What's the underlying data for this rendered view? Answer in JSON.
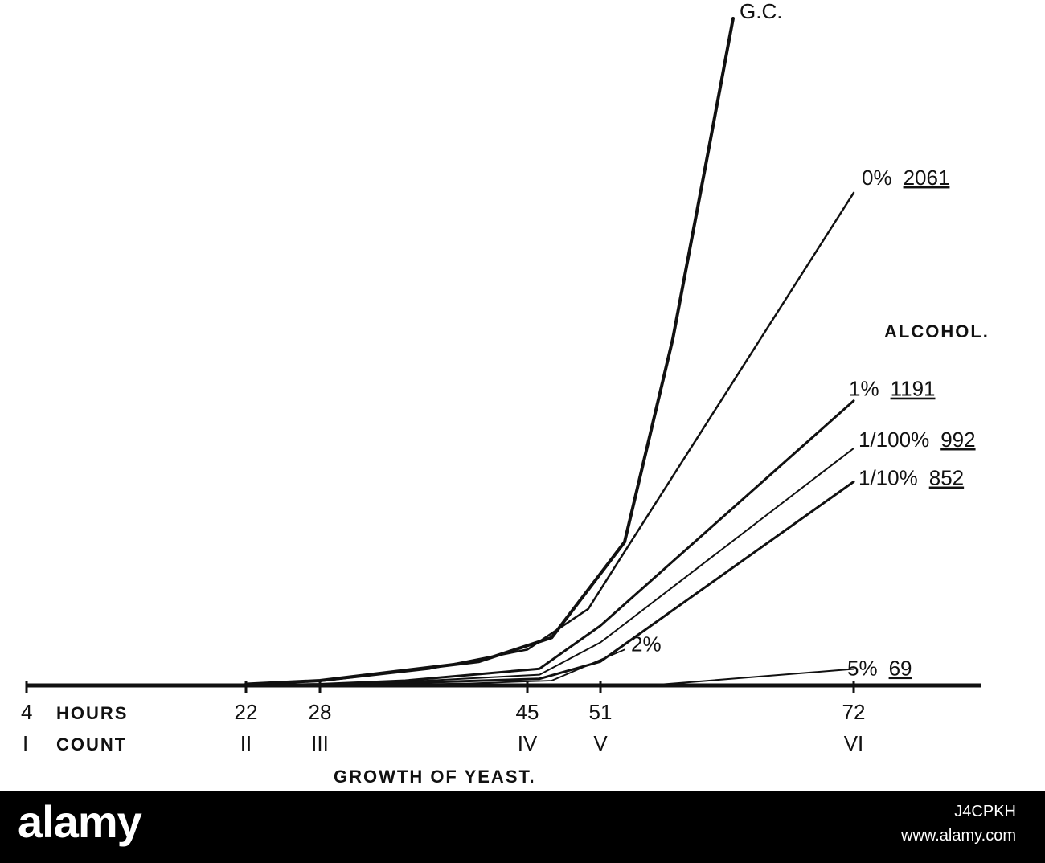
{
  "chart_data": {
    "type": "line",
    "title": "GROWTH OF YEAST.",
    "x_hour_ticks": [
      "4",
      "22",
      "28",
      "45",
      "51",
      "72"
    ],
    "x_hour_row_label": "HOURS",
    "x_count_ticks": [
      "I",
      "II",
      "III",
      "IV",
      "V",
      "VI"
    ],
    "x_count_row_label": "COUNT",
    "legend_title": "ALCOHOL.",
    "x": [
      4,
      22,
      28,
      45,
      51,
      72
    ],
    "ylim": [
      0,
      2800
    ],
    "series": [
      {
        "name": "G.C.",
        "final_label": "",
        "points": [
          [
            22,
            5
          ],
          [
            28,
            20
          ],
          [
            41,
            100
          ],
          [
            47,
            200
          ],
          [
            53,
            600
          ],
          [
            57,
            1450
          ],
          [
            60,
            2250
          ],
          [
            62,
            2790
          ]
        ]
      },
      {
        "name": "0%",
        "final_label": "2061",
        "points": [
          [
            22,
            5
          ],
          [
            28,
            18
          ],
          [
            37,
            70
          ],
          [
            45,
            150
          ],
          [
            50,
            320
          ],
          [
            52,
            480
          ],
          [
            72,
            2061
          ]
        ]
      },
      {
        "name": "1%",
        "final_label": "1191",
        "points": [
          [
            22,
            0
          ],
          [
            28,
            5
          ],
          [
            35,
            20
          ],
          [
            46,
            70
          ],
          [
            51,
            250
          ],
          [
            72,
            1191
          ]
        ]
      },
      {
        "name": "1/100%",
        "final_label": "992",
        "points": [
          [
            22,
            0
          ],
          [
            28,
            4
          ],
          [
            35,
            15
          ],
          [
            46,
            45
          ],
          [
            51,
            180
          ],
          [
            72,
            992
          ]
        ]
      },
      {
        "name": "1/10%",
        "final_label": "852",
        "points": [
          [
            22,
            0
          ],
          [
            28,
            3
          ],
          [
            35,
            10
          ],
          [
            46,
            28
          ],
          [
            51,
            100
          ],
          [
            72,
            852
          ]
        ]
      },
      {
        "name": "2%",
        "final_label": "",
        "points": [
          [
            28,
            0
          ],
          [
            40,
            8
          ],
          [
            47,
            20
          ],
          [
            53,
            150
          ]
        ]
      },
      {
        "name": "5%",
        "final_label": "69",
        "points": [
          [
            55,
            0
          ],
          [
            72,
            69
          ]
        ]
      }
    ]
  },
  "footer": {
    "brand": "alamy",
    "image_id": "J4CPKH",
    "site": "www.alamy.com"
  }
}
